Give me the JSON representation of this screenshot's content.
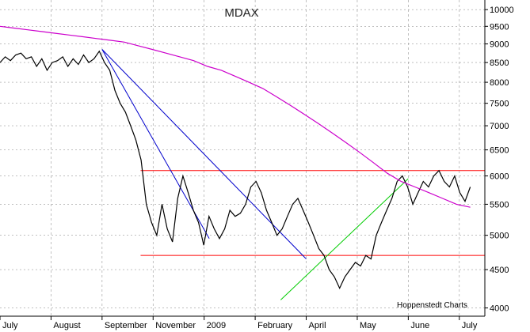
{
  "chart_data": {
    "type": "line",
    "title": "MDAX",
    "credit": "Hoppenstedt Charts",
    "ylim": [
      3900,
      10300
    ],
    "y_scale": "log",
    "y_ticks": [
      4000,
      4500,
      5000,
      5500,
      6000,
      6500,
      7000,
      7500,
      8000,
      8500,
      9000,
      9500,
      10000
    ],
    "x_labels": [
      "July",
      "August",
      "September",
      "November",
      "2009",
      "February",
      "April",
      "May",
      "June",
      "July"
    ],
    "grid": true,
    "colors": {
      "price": "#000000",
      "moving_average": "#cc00cc",
      "resistance": "#ff0000",
      "downtrend": "#0000cc",
      "uptrend": "#00cc00",
      "grid": "#999999"
    },
    "series": [
      {
        "values": [
          8500,
          8650,
          8550,
          8700,
          8750,
          8600,
          8650,
          8400,
          8600,
          8300,
          8500,
          8550,
          8650,
          8400,
          8600,
          8450,
          8700,
          8500,
          8600,
          8800,
          8500,
          8300,
          7800,
          7500,
          7300,
          7000,
          6700,
          6300,
          5500,
          5200,
          5000,
          5500,
          5100,
          4900,
          5600,
          6000,
          5700,
          5400,
          5200,
          4850,
          5300,
          5100,
          4950,
          5100,
          5400,
          5300,
          5350,
          5500,
          5800,
          5900,
          5700,
          5400,
          5200,
          5000,
          5100,
          5300,
          5500,
          5600,
          5400,
          5200,
          5000,
          4800,
          4700,
          4500,
          4400,
          4250,
          4400,
          4500,
          4600,
          4550,
          4700,
          4650,
          5000,
          5200,
          5400,
          5600,
          5900,
          6000,
          5800,
          5500,
          5700,
          5900,
          5800,
          6000,
          6100,
          5900,
          5800,
          6000,
          5700,
          5550,
          5800
        ]
      },
      {
        "values": [
          9500,
          9450,
          9400,
          9350,
          9300,
          9250,
          9200,
          9150,
          9100,
          9050,
          8950,
          8850,
          8750,
          8650,
          8550,
          8400,
          8300,
          8150,
          8000,
          7850,
          7650,
          7450,
          7250,
          7050,
          6850,
          6650,
          6450,
          6250,
          6050,
          5900,
          5800,
          5700,
          5600,
          5500,
          5450
        ]
      }
    ],
    "lines": {
      "resistance_levels": [
        6100,
        4700
      ],
      "downtrend_1": {
        "from": [
          "September",
          8850
        ],
        "to": [
          "November",
          4950
        ]
      },
      "downtrend_2": {
        "from": [
          "September",
          8850
        ],
        "to": [
          "April",
          4650
        ]
      },
      "uptrend": {
        "from": [
          "April",
          4100
        ],
        "to": [
          "June",
          5950
        ]
      }
    }
  }
}
